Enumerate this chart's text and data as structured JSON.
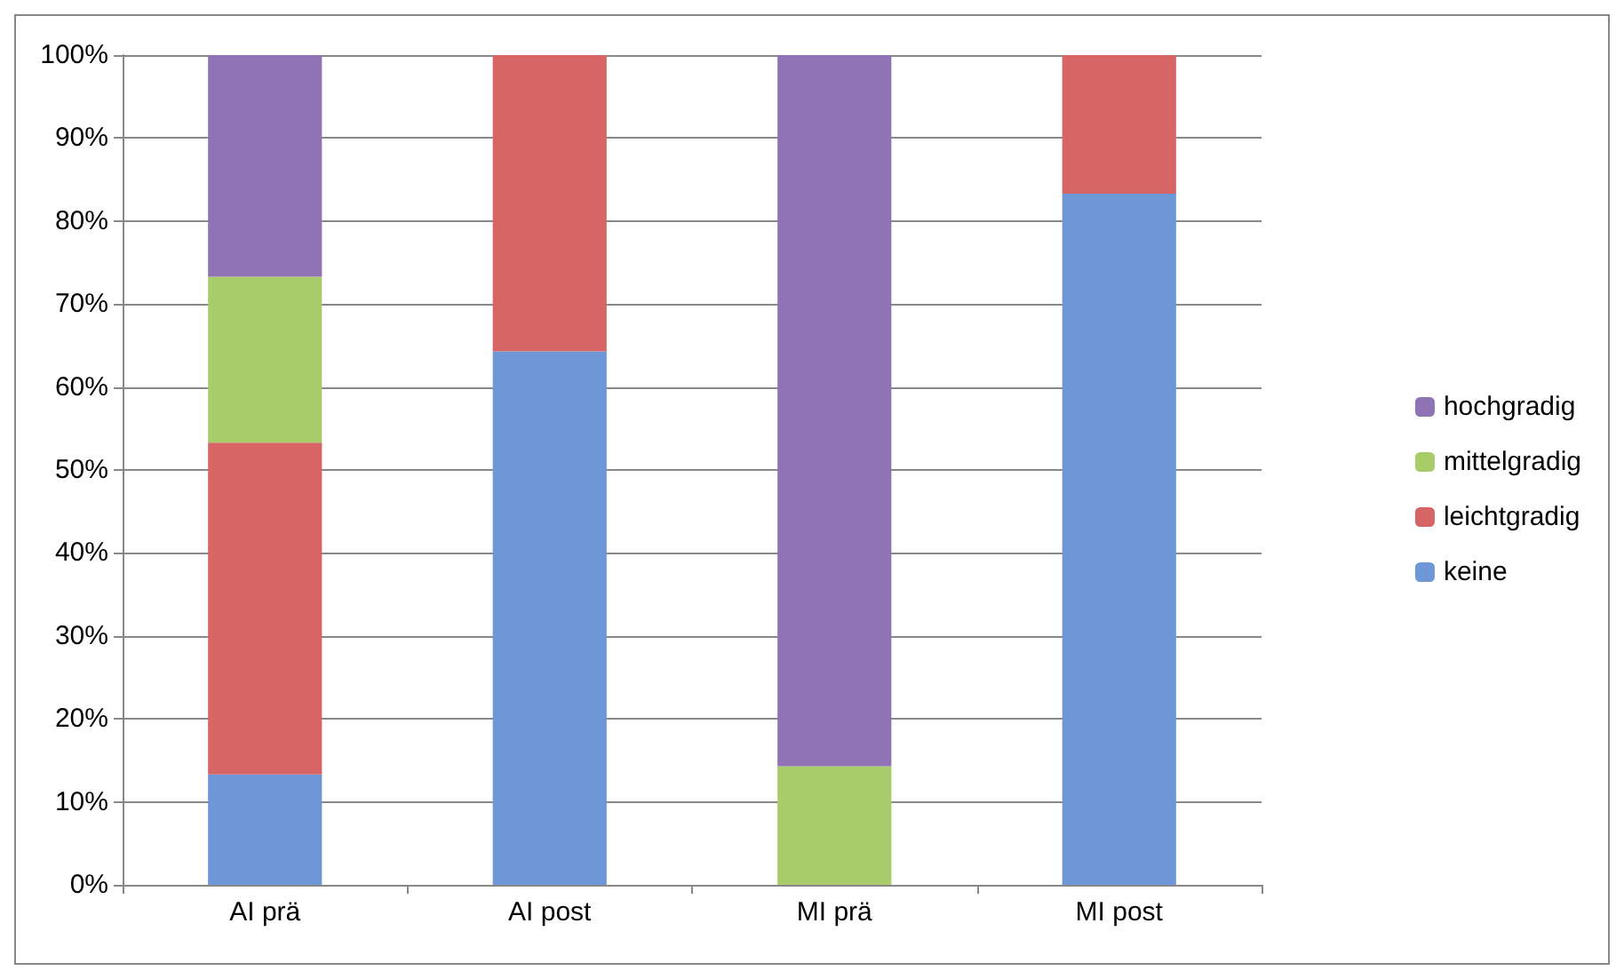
{
  "chart_data": {
    "type": "bar",
    "stacked": true,
    "categories": [
      "AI prä",
      "AI post",
      "MI prä",
      "MI post"
    ],
    "series": [
      {
        "name": "keine",
        "color": "#6d97d6",
        "values": [
          13.3,
          64.3,
          0,
          83.3
        ]
      },
      {
        "name": "leichtgradig",
        "color": "#d86565",
        "values": [
          40,
          35.7,
          0,
          16.7
        ]
      },
      {
        "name": "mittelgradig",
        "color": "#a9cc6a",
        "values": [
          20,
          0,
          14.3,
          0
        ]
      },
      {
        "name": "hochgradig",
        "color": "#8f73b5",
        "values": [
          26.7,
          0,
          85.7,
          0
        ]
      }
    ],
    "ylim": [
      0,
      100
    ],
    "yticks": [
      {
        "value": 0,
        "label": "0%"
      },
      {
        "value": 10,
        "label": "10%"
      },
      {
        "value": 20,
        "label": "20%"
      },
      {
        "value": 30,
        "label": "30%"
      },
      {
        "value": 40,
        "label": "40%"
      },
      {
        "value": 50,
        "label": "50%"
      },
      {
        "value": 60,
        "label": "60%"
      },
      {
        "value": 70,
        "label": "70%"
      },
      {
        "value": 80,
        "label": "80%"
      },
      {
        "value": 90,
        "label": "90%"
      },
      {
        "value": 100,
        "label": "100%"
      }
    ],
    "grid": "y",
    "legend": "right"
  }
}
